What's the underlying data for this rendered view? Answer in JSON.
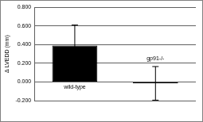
{
  "chart_data": {
    "type": "bar",
    "y_label": "Δ LVEDD (mm)",
    "categories": [
      "wild-type",
      "gp91-/-"
    ],
    "values": [
      0.39,
      -0.015
    ],
    "errors": [
      0.22,
      0.18
    ],
    "colors": [
      "#000000",
      "#ffffff"
    ],
    "ylim": [
      -0.2,
      0.8
    ],
    "yticks": [
      {
        "value": -0.2,
        "label": "-0.200"
      },
      {
        "value": 0,
        "label": "0.000"
      },
      {
        "value": 0.2,
        "label": "0.200"
      },
      {
        "value": 0.4,
        "label": "0.400"
      },
      {
        "value": 0.6,
        "label": "0.600"
      },
      {
        "value": 0.8,
        "label": "0.800"
      }
    ],
    "grid": true,
    "tick_labels": "y"
  }
}
